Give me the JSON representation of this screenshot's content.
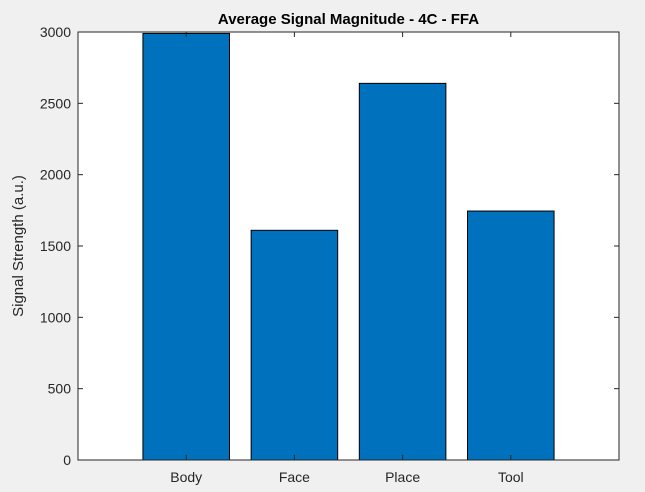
{
  "chart_data": {
    "type": "bar",
    "title": "Average Signal Magnitude - 4C - FFA",
    "xlabel": "",
    "ylabel": "Signal Strength (a.u.)",
    "categories": [
      "Body",
      "Face",
      "Place",
      "Tool"
    ],
    "values": [
      2990,
      1610,
      2640,
      1745
    ],
    "ylim": [
      0,
      3000
    ],
    "xlim": [
      0,
      5
    ],
    "yticks": [
      0,
      500,
      1000,
      1500,
      2000,
      2500,
      3000
    ],
    "ytick_labels": [
      "0",
      "500",
      "1000",
      "1500",
      "2000",
      "2500",
      "3000"
    ],
    "grid": false,
    "legend": "none",
    "colors": {
      "bar": "#0072bd",
      "bar_edge": "#000000",
      "axes_bg": "#ffffff",
      "figure_bg": "#f0f0f0",
      "axis": "#262626"
    }
  }
}
